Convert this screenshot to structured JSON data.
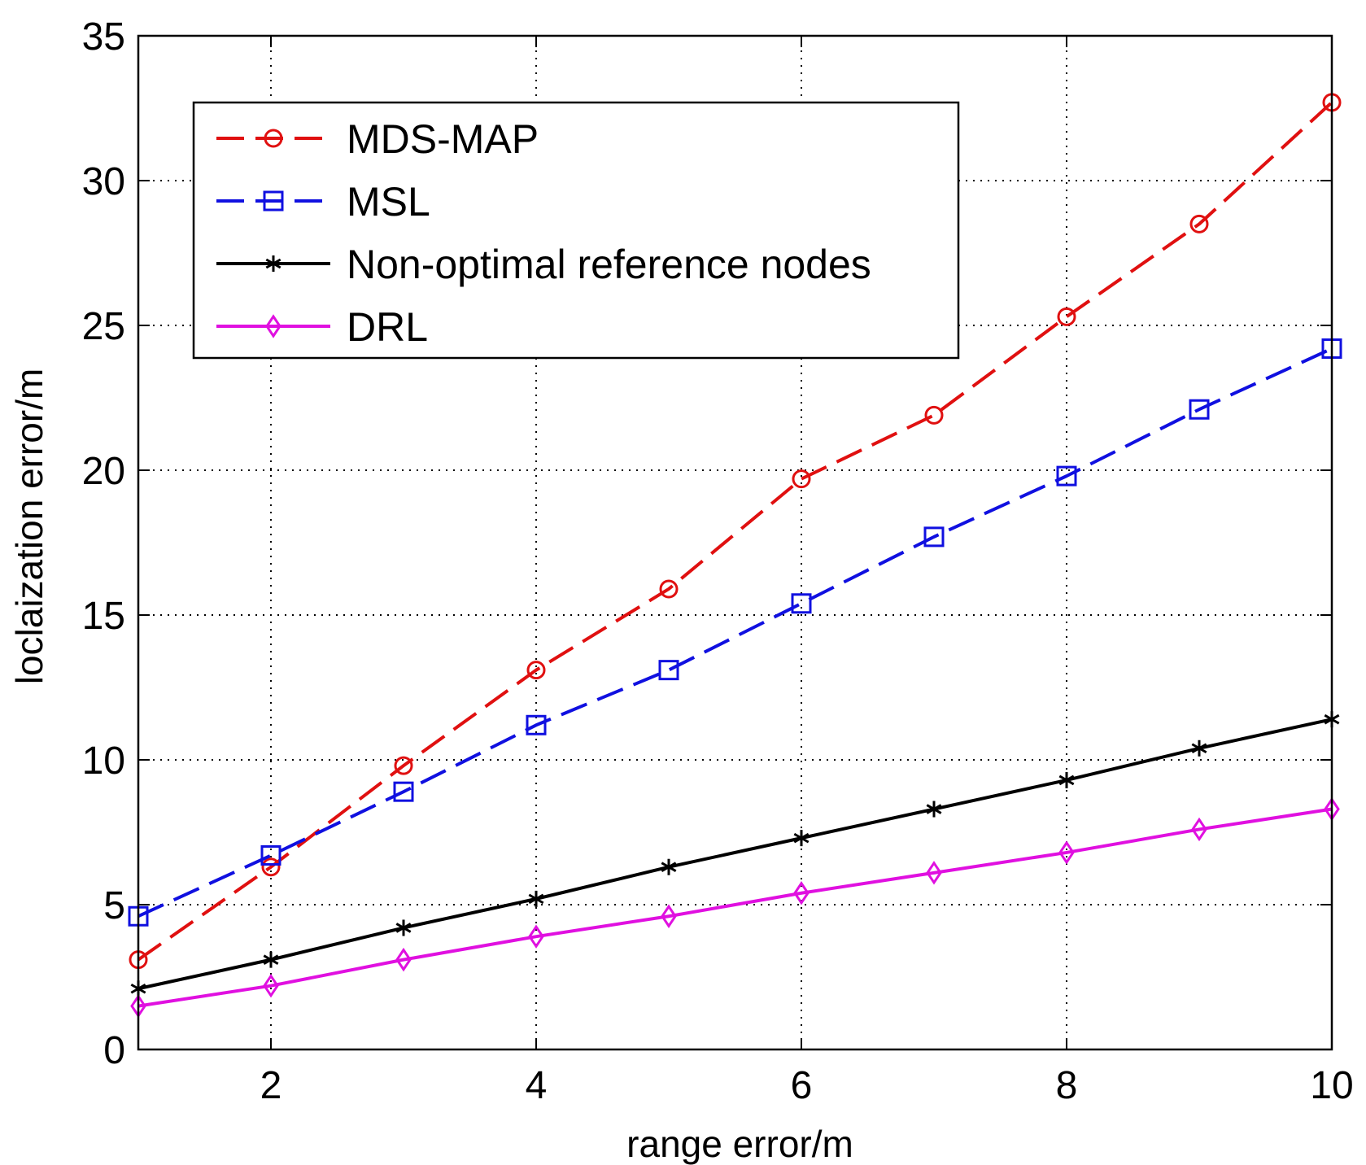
{
  "chart_data": {
    "type": "line",
    "title": "",
    "xlabel": "range error/m",
    "ylabel": "loclaization error/m",
    "xlim": [
      1,
      10
    ],
    "ylim": [
      0,
      35
    ],
    "xticks": [
      2,
      4,
      6,
      8,
      10
    ],
    "yticks": [
      0,
      5,
      10,
      15,
      20,
      25,
      30,
      35
    ],
    "grid": true,
    "legend_position": "top-left",
    "x": [
      1,
      2,
      3,
      4,
      5,
      6,
      7,
      8,
      9,
      10
    ],
    "series": [
      {
        "name": "MDS-MAP",
        "values": [
          3.1,
          6.3,
          9.8,
          13.1,
          15.9,
          19.7,
          21.9,
          25.3,
          28.5,
          32.7
        ],
        "color": "#e01010",
        "dash": "dashed",
        "marker": "circle"
      },
      {
        "name": "MSL",
        "values": [
          4.6,
          6.7,
          8.9,
          11.2,
          13.1,
          15.4,
          17.7,
          19.8,
          22.1,
          24.2
        ],
        "color": "#1010e0",
        "dash": "dashed",
        "marker": "square"
      },
      {
        "name": "Non-optimal reference nodes",
        "values": [
          2.1,
          3.1,
          4.2,
          5.2,
          6.3,
          7.3,
          8.3,
          9.3,
          10.4,
          11.4
        ],
        "color": "#000000",
        "dash": "solid",
        "marker": "star"
      },
      {
        "name": "DRL",
        "values": [
          1.5,
          2.2,
          3.1,
          3.9,
          4.6,
          5.4,
          6.1,
          6.8,
          7.6,
          8.3
        ],
        "color": "#e010e0",
        "dash": "solid",
        "marker": "diamond"
      }
    ]
  }
}
